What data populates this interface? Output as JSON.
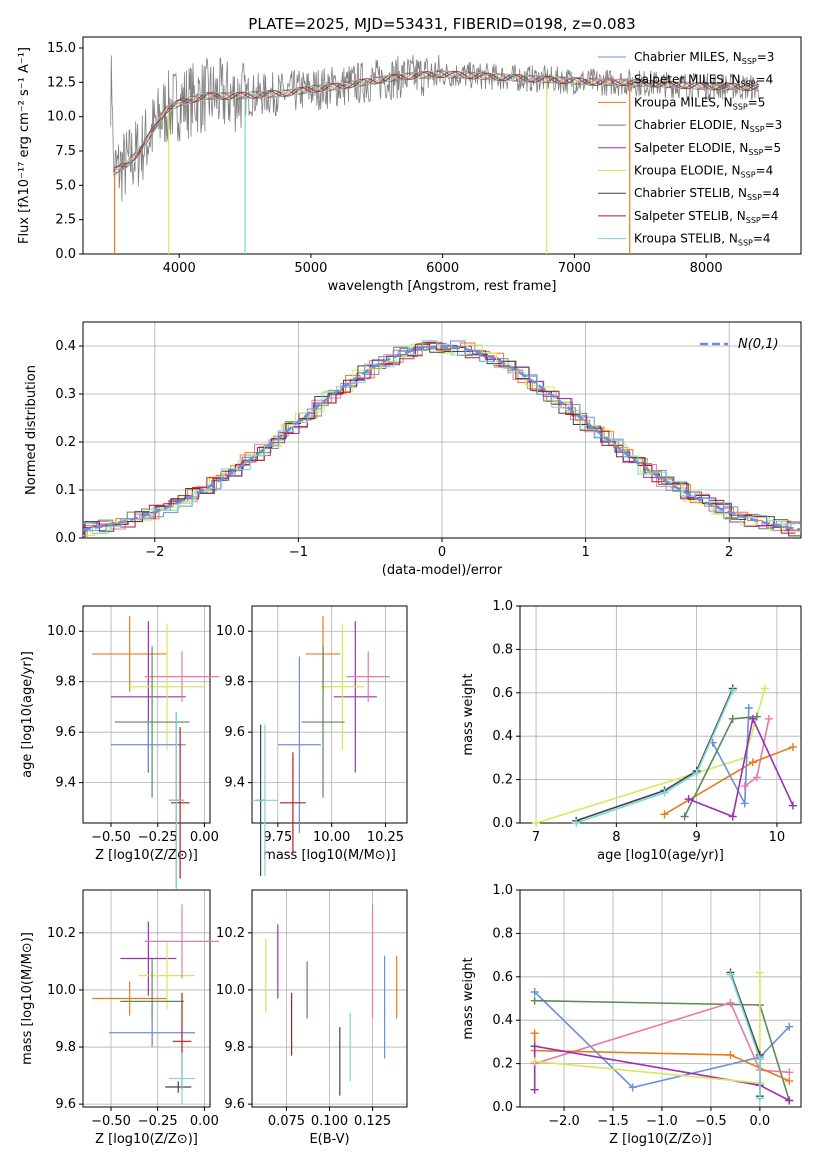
{
  "chart_data": [
    {
      "id": "spectrum",
      "type": "line",
      "title": "PLATE=2025, MJD=53431, FIBERID=0198, z=0.083",
      "xlabel": "wavelength [Angstrom, rest frame]",
      "ylabel": "Flux [fλ10⁻¹⁷ erg cm⁻² s⁻¹ A⁻¹]",
      "xlim": [
        3270,
        8720
      ],
      "ylim": [
        0,
        15.8
      ],
      "xticks": [
        "4000",
        "5000",
        "6000",
        "7000",
        "8000"
      ],
      "yticks": [
        "0.0",
        "2.5",
        "5.0",
        "7.5",
        "10.0",
        "12.5",
        "15.0"
      ],
      "legend_position": "right",
      "legend": [
        {
          "label": "Chabrier MILES, N_SSP=3",
          "color": "#6b8fdc"
        },
        {
          "label": "Salpeter MILES, N_SSP=4",
          "color": "#e87aa8"
        },
        {
          "label": "Kroupa MILES, N_SSP=5",
          "color": "#e87a1e"
        },
        {
          "label": "Chabrier ELODIE, N_SSP=3",
          "color": "#5a8a5a"
        },
        {
          "label": "Salpeter ELODIE, N_SSP=5",
          "color": "#9a30b8"
        },
        {
          "label": "Kroupa ELODIE, N_SSP=4",
          "color": "#d8e858"
        },
        {
          "label": "Chabrier STELIB, N_SSP=4",
          "color": "#444444"
        },
        {
          "label": "Salpeter STELIB, N_SSP=4",
          "color": "#c01818"
        },
        {
          "label": "Kroupa STELIB, N_SSP=4",
          "color": "#7ad8d8"
        }
      ],
      "data_series": {
        "x": [
          3500,
          3600,
          3700,
          3800,
          3900,
          4000,
          4200,
          4400,
          4600,
          4800,
          5000,
          5200,
          5400,
          5600,
          5800,
          6000,
          6200,
          6400,
          6600,
          6800,
          7000,
          7200,
          7400,
          7600,
          7800,
          8000,
          8200,
          8400
        ],
        "y": [
          6.0,
          6.5,
          7.5,
          9.0,
          10.5,
          11.0,
          11.5,
          11.5,
          11.6,
          11.7,
          12.0,
          12.2,
          12.5,
          12.8,
          13.0,
          13.1,
          13.0,
          12.9,
          12.8,
          12.7,
          12.6,
          12.5,
          12.5,
          12.4,
          12.3,
          12.2,
          12.2,
          12.1
        ]
      }
    },
    {
      "id": "residuals",
      "type": "line",
      "xlabel": "(data-model)/error",
      "ylabel": "Normed distribution",
      "xlim": [
        -2.5,
        2.5
      ],
      "ylim": [
        0,
        0.45
      ],
      "xticks": [
        "−2",
        "−1",
        "0",
        "1",
        "2"
      ],
      "yticks": [
        "0.0",
        "0.1",
        "0.2",
        "0.3",
        "0.4"
      ],
      "legend": [
        {
          "label": "N(0,1)",
          "color": "#6b8fdc"
        }
      ],
      "legend_position": "top-right",
      "grid": true
    },
    {
      "id": "z-age",
      "type": "scatter",
      "xlabel": "Z [log10(Z/Z⊙)]",
      "ylabel": "age [log10(age/yr)]",
      "xlim": [
        -0.65,
        0.03
      ],
      "ylim": [
        9.24,
        10.1
      ],
      "xticks": [
        "−0.50",
        "−0.25",
        "0.00"
      ],
      "yticks": [
        "9.4",
        "9.6",
        "9.8",
        "10.0"
      ],
      "grid": true,
      "points": [
        {
          "x": -0.4,
          "y": 9.91,
          "color": "#e87a1e"
        },
        {
          "x": -0.3,
          "y": 9.74,
          "color": "#9a30b8"
        },
        {
          "x": -0.2,
          "y": 9.78,
          "color": "#d8e858"
        },
        {
          "x": -0.12,
          "y": 9.82,
          "color": "#e87aa8"
        },
        {
          "x": -0.28,
          "y": 9.64,
          "color": "#5a8a5a"
        },
        {
          "x": -0.3,
          "y": 9.55,
          "color": "#6b8fdc"
        },
        {
          "x": -0.15,
          "y": 9.33,
          "color": "#444444"
        },
        {
          "x": -0.13,
          "y": 9.32,
          "color": "#c01818"
        },
        {
          "x": -0.15,
          "y": 9.33,
          "color": "#7ad8d8"
        }
      ]
    },
    {
      "id": "mass-age",
      "type": "scatter",
      "xlabel": "mass [log10(M/M⊙)]",
      "ylabel": "",
      "xlim": [
        9.63,
        10.35
      ],
      "ylim": [
        9.24,
        10.1
      ],
      "xticks": [
        "9.75",
        "10.00",
        "10.25"
      ],
      "yticks": [
        "9.4",
        "9.6",
        "9.8",
        "10.0"
      ],
      "grid": true,
      "points": [
        {
          "x": 9.96,
          "y": 9.91,
          "color": "#e87a1e"
        },
        {
          "x": 10.11,
          "y": 9.74,
          "color": "#9a30b8"
        },
        {
          "x": 10.05,
          "y": 9.78,
          "color": "#d8e858"
        },
        {
          "x": 10.17,
          "y": 9.82,
          "color": "#e87aa8"
        },
        {
          "x": 9.96,
          "y": 9.64,
          "color": "#5a8a5a"
        },
        {
          "x": 9.85,
          "y": 9.55,
          "color": "#6b8fdc"
        },
        {
          "x": 9.67,
          "y": 9.33,
          "color": "#444444"
        },
        {
          "x": 9.82,
          "y": 9.32,
          "color": "#c01818"
        },
        {
          "x": 9.69,
          "y": 9.33,
          "color": "#7ad8d8"
        }
      ]
    },
    {
      "id": "age-weight",
      "type": "line",
      "xlabel": "age [log10(age/yr)]",
      "ylabel": "mass weight",
      "xlim": [
        6.8,
        10.3
      ],
      "ylim": [
        0,
        1.0
      ],
      "xticks": [
        "7",
        "8",
        "9",
        "10"
      ],
      "yticks": [
        "0.0",
        "0.2",
        "0.4",
        "0.6",
        "0.8",
        "1.0"
      ],
      "grid": true
    },
    {
      "id": "z-mass",
      "type": "scatter",
      "xlabel": "Z [log10(Z/Z⊙)]",
      "ylabel": "mass [log10(M/M⊙)]",
      "xlim": [
        -0.65,
        0.03
      ],
      "ylim": [
        9.59,
        10.35
      ],
      "xticks": [
        "−0.50",
        "−0.25",
        "0.00"
      ],
      "yticks": [
        "9.6",
        "9.8",
        "10.0",
        "10.2"
      ],
      "grid": true
    },
    {
      "id": "ebv-mass",
      "type": "scatter",
      "xlabel": "E(B-V)",
      "ylabel": "",
      "xlim": [
        0.055,
        0.145
      ],
      "ylim": [
        9.59,
        10.35
      ],
      "xticks": [
        "0.075",
        "0.100",
        "0.125"
      ],
      "yticks": [
        "9.6",
        "9.8",
        "10.0",
        "10.2"
      ],
      "grid": true
    },
    {
      "id": "z-weight",
      "type": "line",
      "xlabel": "Z [log10(Z/Z⊙)]",
      "ylabel": "mass weight",
      "xlim": [
        -2.45,
        0.42
      ],
      "ylim": [
        0,
        1.0
      ],
      "xticks": [
        "−2.0",
        "−1.5",
        "−1.0",
        "−0.5",
        "0.0"
      ],
      "yticks": [
        "0.0",
        "0.2",
        "0.4",
        "0.6",
        "0.8",
        "1.0"
      ],
      "grid": true
    }
  ]
}
